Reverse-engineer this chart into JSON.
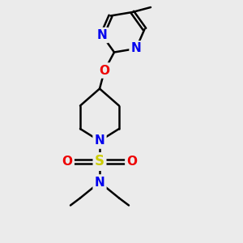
{
  "background_color": "#ebebeb",
  "atom_colors": {
    "C": "#000000",
    "N": "#0000ee",
    "O": "#ee0000",
    "S": "#cccc00",
    "H": "#000000"
  },
  "bond_color": "#000000",
  "bond_width": 1.8,
  "figsize": [
    3.0,
    3.0
  ],
  "dpi": 100,
  "xlim": [
    0,
    10
  ],
  "ylim": [
    0,
    10
  ]
}
